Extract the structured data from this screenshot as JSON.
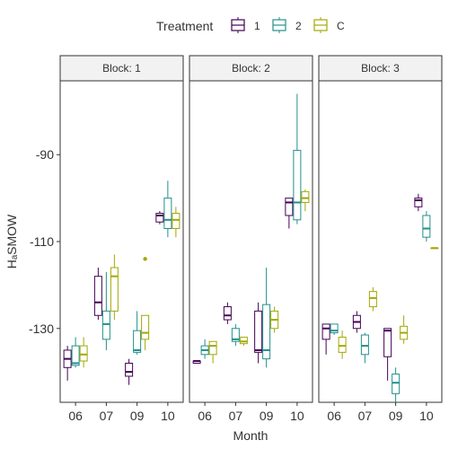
{
  "chart_data": {
    "type": "boxplot",
    "xlabel": "Month",
    "ylabel": "HₐSMOW",
    "ylim": [
      -147,
      -73
    ],
    "yticks": [
      -90,
      -110,
      -130
    ],
    "categories": [
      "06",
      "07",
      "09",
      "10"
    ],
    "legend": {
      "title": "Treatment",
      "position": "top",
      "entries": [
        {
          "key": "1",
          "label": "1",
          "color": "#440154"
        },
        {
          "key": "2",
          "label": "2",
          "color": "#21908C"
        },
        {
          "key": "C",
          "label": "C",
          "color": "#A3A800"
        }
      ]
    },
    "grid": false,
    "facets": [
      {
        "label": "Block: 1",
        "groups": [
          {
            "month": "06",
            "treatment": "1",
            "whisker_low": -142,
            "q1": -139,
            "median": -137,
            "q3": -135,
            "whisker_high": -134,
            "outliers": []
          },
          {
            "month": "06",
            "treatment": "2",
            "whisker_low": -139,
            "q1": -138.5,
            "median": -138,
            "q3": -134,
            "whisker_high": -132,
            "outliers": []
          },
          {
            "month": "06",
            "treatment": "C",
            "whisker_low": -139,
            "q1": -137.5,
            "median": -136,
            "q3": -134,
            "whisker_high": -132,
            "outliers": []
          },
          {
            "month": "07",
            "treatment": "1",
            "whisker_low": -128,
            "q1": -127,
            "median": -124,
            "q3": -118,
            "whisker_high": -116,
            "outliers": []
          },
          {
            "month": "07",
            "treatment": "2",
            "whisker_low": -135,
            "q1": -132.5,
            "median": -129,
            "q3": -126,
            "whisker_high": -117,
            "outliers": []
          },
          {
            "month": "07",
            "treatment": "C",
            "whisker_low": -128,
            "q1": -126,
            "median": -118,
            "q3": -116,
            "whisker_high": -113,
            "outliers": []
          },
          {
            "month": "09",
            "treatment": "1",
            "whisker_low": -143,
            "q1": -141,
            "median": -140,
            "q3": -138,
            "whisker_high": -137,
            "outliers": []
          },
          {
            "month": "09",
            "treatment": "2",
            "whisker_low": -136,
            "q1": -135.5,
            "median": -135,
            "q3": -130.5,
            "whisker_high": -126,
            "outliers": []
          },
          {
            "month": "09",
            "treatment": "C",
            "whisker_low": -135,
            "q1": -132.5,
            "median": -131,
            "q3": -127,
            "whisker_high": -127,
            "outliers": [
              -114
            ]
          },
          {
            "month": "10",
            "treatment": "1",
            "whisker_low": -106,
            "q1": -105.5,
            "median": -104,
            "q3": -103.5,
            "whisker_high": -103,
            "outliers": []
          },
          {
            "month": "10",
            "treatment": "2",
            "whisker_low": -109,
            "q1": -107,
            "median": -105,
            "q3": -100,
            "whisker_high": -96,
            "outliers": []
          },
          {
            "month": "10",
            "treatment": "C",
            "whisker_low": -109,
            "q1": -107,
            "median": -105,
            "q3": -103.5,
            "whisker_high": -102,
            "outliers": []
          }
        ]
      },
      {
        "label": "Block: 2",
        "groups": [
          {
            "month": "06",
            "treatment": "1",
            "whisker_low": -138,
            "q1": -138,
            "median": -137.5,
            "q3": -137.5,
            "whisker_high": -137.5,
            "outliers": []
          },
          {
            "month": "06",
            "treatment": "2",
            "whisker_low": -137,
            "q1": -136,
            "median": -135,
            "q3": -134,
            "whisker_high": -132.5,
            "outliers": []
          },
          {
            "month": "06",
            "treatment": "C",
            "whisker_low": -138,
            "q1": -136,
            "median": -134,
            "q3": -133,
            "whisker_high": -133,
            "outliers": []
          },
          {
            "month": "07",
            "treatment": "1",
            "whisker_low": -129,
            "q1": -128,
            "median": -127,
            "q3": -125,
            "whisker_high": -124,
            "outliers": []
          },
          {
            "month": "07",
            "treatment": "2",
            "whisker_low": -134,
            "q1": -133,
            "median": -132.5,
            "q3": -130,
            "whisker_high": -129,
            "outliers": []
          },
          {
            "month": "07",
            "treatment": "C",
            "whisker_low": -134,
            "q1": -133.5,
            "median": -133,
            "q3": -132,
            "whisker_high": -132,
            "outliers": []
          },
          {
            "month": "09",
            "treatment": "1",
            "whisker_low": -138,
            "q1": -135.5,
            "median": -135,
            "q3": -126,
            "whisker_high": -124,
            "outliers": []
          },
          {
            "month": "09",
            "treatment": "2",
            "whisker_low": -139,
            "q1": -137,
            "median": -135,
            "q3": -124.5,
            "whisker_high": -116,
            "outliers": []
          },
          {
            "month": "09",
            "treatment": "C",
            "whisker_low": -131,
            "q1": -130,
            "median": -128,
            "q3": -126,
            "whisker_high": -125,
            "outliers": []
          },
          {
            "month": "10",
            "treatment": "1",
            "whisker_low": -107,
            "q1": -104,
            "median": -101,
            "q3": -100,
            "whisker_high": -100,
            "outliers": []
          },
          {
            "month": "10",
            "treatment": "2",
            "whisker_low": -106,
            "q1": -105,
            "median": -101,
            "q3": -89,
            "whisker_high": -76,
            "outliers": []
          },
          {
            "month": "10",
            "treatment": "C",
            "whisker_low": -103,
            "q1": -101,
            "median": -100,
            "q3": -98.5,
            "whisker_high": -98,
            "outliers": []
          }
        ]
      },
      {
        "label": "Block: 3",
        "groups": [
          {
            "month": "06",
            "treatment": "1",
            "whisker_low": -136,
            "q1": -132.5,
            "median": -130,
            "q3": -129,
            "whisker_high": -129,
            "outliers": []
          },
          {
            "month": "06",
            "treatment": "2",
            "whisker_low": -131.5,
            "q1": -131,
            "median": -130.5,
            "q3": -129,
            "whisker_high": -129,
            "outliers": []
          },
          {
            "month": "06",
            "treatment": "C",
            "whisker_low": -137,
            "q1": -135.5,
            "median": -134,
            "q3": -132,
            "whisker_high": -130.5,
            "outliers": []
          },
          {
            "month": "07",
            "treatment": "1",
            "whisker_low": -131,
            "q1": -130,
            "median": -128.5,
            "q3": -127,
            "whisker_high": -126,
            "outliers": []
          },
          {
            "month": "07",
            "treatment": "2",
            "whisker_low": -138,
            "q1": -136,
            "median": -134,
            "q3": -131.5,
            "whisker_high": -131,
            "outliers": []
          },
          {
            "month": "07",
            "treatment": "C",
            "whisker_low": -126,
            "q1": -125,
            "median": -123,
            "q3": -121.5,
            "whisker_high": -120.5,
            "outliers": []
          },
          {
            "month": "09",
            "treatment": "1",
            "whisker_low": -142,
            "q1": -136.5,
            "median": -130.5,
            "q3": -130,
            "whisker_high": -130,
            "outliers": []
          },
          {
            "month": "09",
            "treatment": "2",
            "whisker_low": -147,
            "q1": -145,
            "median": -142.5,
            "q3": -140.5,
            "whisker_high": -139,
            "outliers": []
          },
          {
            "month": "09",
            "treatment": "C",
            "whisker_low": -133.5,
            "q1": -132.5,
            "median": -131,
            "q3": -129.5,
            "whisker_high": -127,
            "outliers": []
          },
          {
            "month": "10",
            "treatment": "1",
            "whisker_low": -103,
            "q1": -102,
            "median": -100.5,
            "q3": -100,
            "whisker_high": -99,
            "outliers": []
          },
          {
            "month": "10",
            "treatment": "2",
            "whisker_low": -110,
            "q1": -109,
            "median": -107,
            "q3": -104,
            "whisker_high": -103,
            "outliers": []
          },
          {
            "month": "10",
            "treatment": "C",
            "whisker_low": -111.5,
            "q1": -111.5,
            "median": -111.5,
            "q3": -111.5,
            "whisker_high": -111.5,
            "outliers": []
          }
        ]
      }
    ]
  }
}
